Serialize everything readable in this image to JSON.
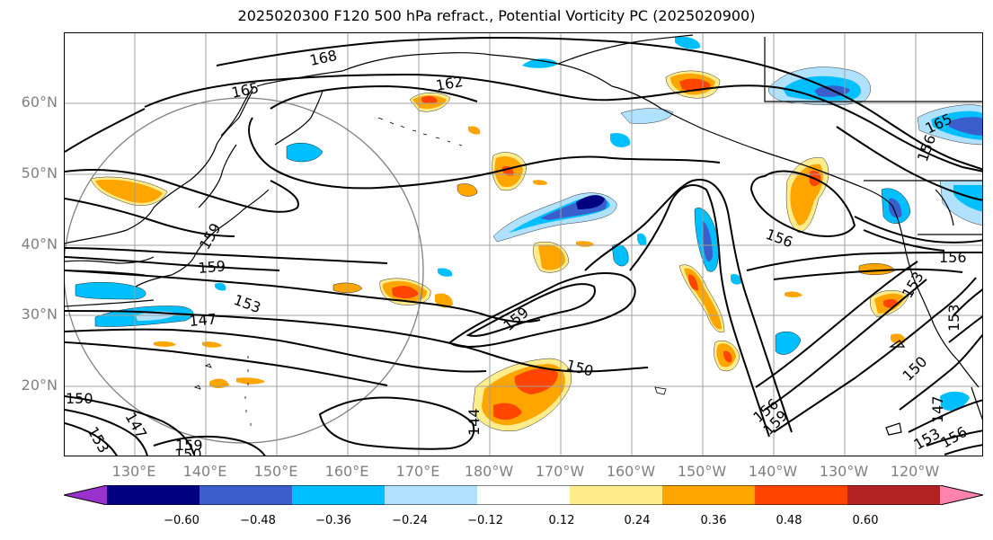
{
  "title": "2025020300 F120 500 hPa refract., Potential Vorticity PC (2025020900)",
  "lat_labels": [
    "60°N",
    "50°N",
    "40°N",
    "30°N",
    "20°N"
  ],
  "lon_labels": [
    "130°E",
    "140°E",
    "150°E",
    "160°E",
    "170°E",
    "180°W",
    "170°W",
    "160°W",
    "150°W",
    "140°W",
    "130°W",
    "120°W"
  ],
  "contour_labels": [
    "168",
    "165",
    "162",
    "159",
    "159",
    "153",
    "147",
    "159",
    "150",
    "144",
    "156",
    "156",
    "156",
    "159",
    "150",
    "153",
    "153",
    "165",
    "156",
    "150",
    "147",
    "153",
    "159",
    "150",
    "153",
    "156",
    "147"
  ],
  "colorbar": {
    "ticks": [
      "−0.60",
      "−0.48",
      "−0.36",
      "−0.24",
      "−0.12",
      "0.12",
      "0.24",
      "0.36",
      "0.48",
      "0.60"
    ],
    "colors": [
      "#9932cc",
      "#000080",
      "#3a5fcd",
      "#00bfff",
      "#b0e2ff",
      "#ffffff",
      "#ffec8b",
      "#ffa500",
      "#ff4500",
      "#b22222",
      "#ff83ac"
    ]
  },
  "fill_colors": {
    "cyan": "#00bfff",
    "lightblue": "#b0e2ff",
    "blue": "#3a5fcd",
    "navy": "#000080",
    "yellow": "#ffec8b",
    "orange": "#ffa500",
    "red": "#ff4500"
  }
}
